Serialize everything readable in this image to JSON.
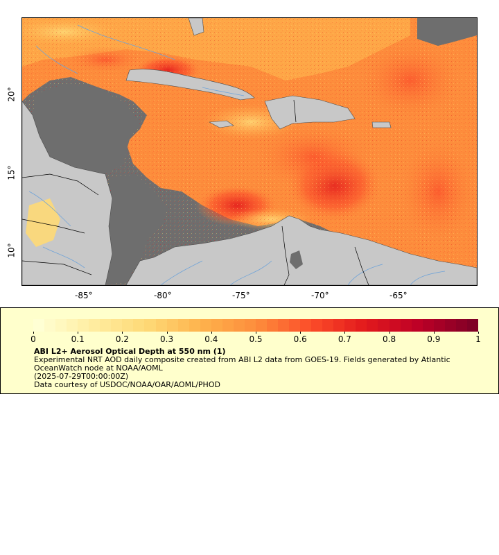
{
  "map": {
    "lon_labels": [
      "-85°",
      "-80°",
      "-75°",
      "-70°",
      "-65°"
    ],
    "lat_labels": [
      "20°",
      "15°",
      "10°"
    ],
    "colors": {
      "ocean_nodata": "#6e6e6e",
      "land": "#c8c8c8",
      "coast": "#4a4a4a",
      "rivers": "#6fa3d8",
      "borders": "#000000"
    }
  },
  "legend": {
    "tick_labels": [
      "0",
      "0.1",
      "0.2",
      "0.3",
      "0.4",
      "0.5",
      "0.6",
      "0.7",
      "0.8",
      "0.9",
      "1"
    ],
    "colorbar_stops": [
      "#ffffd4",
      "#ffeda0",
      "#fed976",
      "#feb24c",
      "#fd8d3c",
      "#fc4e2a",
      "#e31a1c",
      "#bd0026",
      "#800026"
    ],
    "title": "ABI L2+ Aerosol Optical Depth at 550 nm (1)",
    "description": "Experimental NRT AOD daily composite created from ABI L2 data from GOES-19. Fields generated by Atlantic OceanWatch node at NOAA/AOML",
    "time": "(2025-07-29T00:00:00Z)",
    "credit": "Data courtesy of USDOC/NOAA/OAR/AOML/PHOD"
  }
}
